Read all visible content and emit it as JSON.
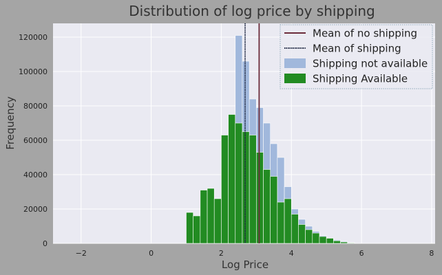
{
  "chart_data": {
    "type": "bar",
    "title": "Distribution of log price by shipping",
    "xlabel": "Log Price",
    "ylabel": "Frequency",
    "xlim": [
      -2.8,
      8.1
    ],
    "ylim": [
      0,
      128000
    ],
    "xticks": [
      -2,
      0,
      2,
      4,
      6,
      8
    ],
    "yticks": [
      0,
      20000,
      40000,
      60000,
      80000,
      100000,
      120000
    ],
    "grid": true,
    "legend_position": "top-right",
    "bin_width": 0.2,
    "series": [
      {
        "name": "Shipping not available",
        "color": "#a1b8dc",
        "bins_x": [
          1.1,
          1.3,
          1.5,
          1.7,
          1.9,
          2.1,
          2.3,
          2.5,
          2.7,
          2.9,
          3.1,
          3.3,
          3.5,
          3.7,
          3.9,
          4.1,
          4.3,
          4.5,
          4.7,
          4.9,
          5.1,
          5.3,
          5.5,
          5.7
        ],
        "values": [
          0,
          0,
          0,
          0,
          0,
          30000,
          74000,
          121000,
          106000,
          84000,
          79000,
          70000,
          58000,
          50000,
          33000,
          20000,
          14000,
          10000,
          7000,
          4500,
          3000,
          2000,
          1200,
          500
        ]
      },
      {
        "name": "Shipping Available",
        "color": "#228b22",
        "bins_x": [
          1.1,
          1.3,
          1.5,
          1.7,
          1.9,
          2.1,
          2.3,
          2.5,
          2.7,
          2.9,
          3.1,
          3.3,
          3.5,
          3.7,
          3.9,
          4.1,
          4.3,
          4.5,
          4.7,
          4.9,
          5.1,
          5.3,
          5.5,
          5.7
        ],
        "values": [
          18000,
          16000,
          31000,
          32000,
          26000,
          63000,
          75000,
          70000,
          65000,
          63000,
          53000,
          43000,
          39000,
          24000,
          26000,
          17000,
          11000,
          8000,
          6000,
          4000,
          3000,
          1500,
          800,
          300
        ]
      }
    ],
    "mean_lines": [
      {
        "name": "Mean of no shipping",
        "x": 3.08,
        "color": "#6b2b3a",
        "style": "solid"
      },
      {
        "name": "Mean of shipping",
        "x": 2.68,
        "color": "#1c2540",
        "style": "dotted"
      }
    ]
  }
}
